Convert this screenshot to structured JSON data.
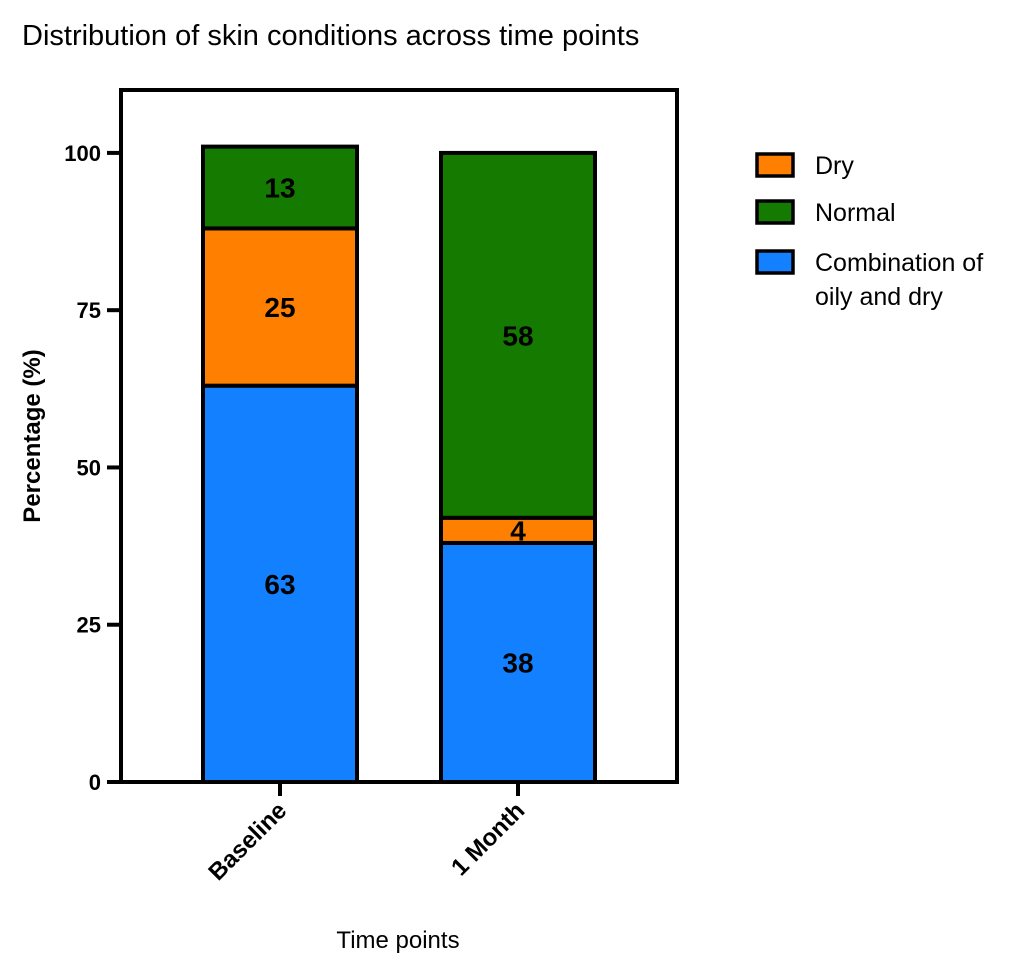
{
  "chart_data": {
    "type": "bar",
    "stacked": true,
    "title": "Distribution of skin conditions across time points",
    "xlabel": "Time points",
    "ylabel": "Percentage (%)",
    "ylim": [
      0,
      110
    ],
    "yticks": [
      0,
      25,
      50,
      75,
      100
    ],
    "categories": [
      "Baseline",
      "1 Month"
    ],
    "series": [
      {
        "name": "Combination of oily and dry",
        "values": [
          63,
          38
        ],
        "color": "#1380FF"
      },
      {
        "name": "Dry",
        "values": [
          25,
          4
        ],
        "color": "#FF8000"
      },
      {
        "name": "Normal",
        "values": [
          13,
          58
        ],
        "color": "#157A00"
      }
    ],
    "legend_order": [
      "Dry",
      "Normal",
      "Combination of oily and dry"
    ],
    "legend_placement": "right",
    "data_labels": true,
    "grid": false
  }
}
